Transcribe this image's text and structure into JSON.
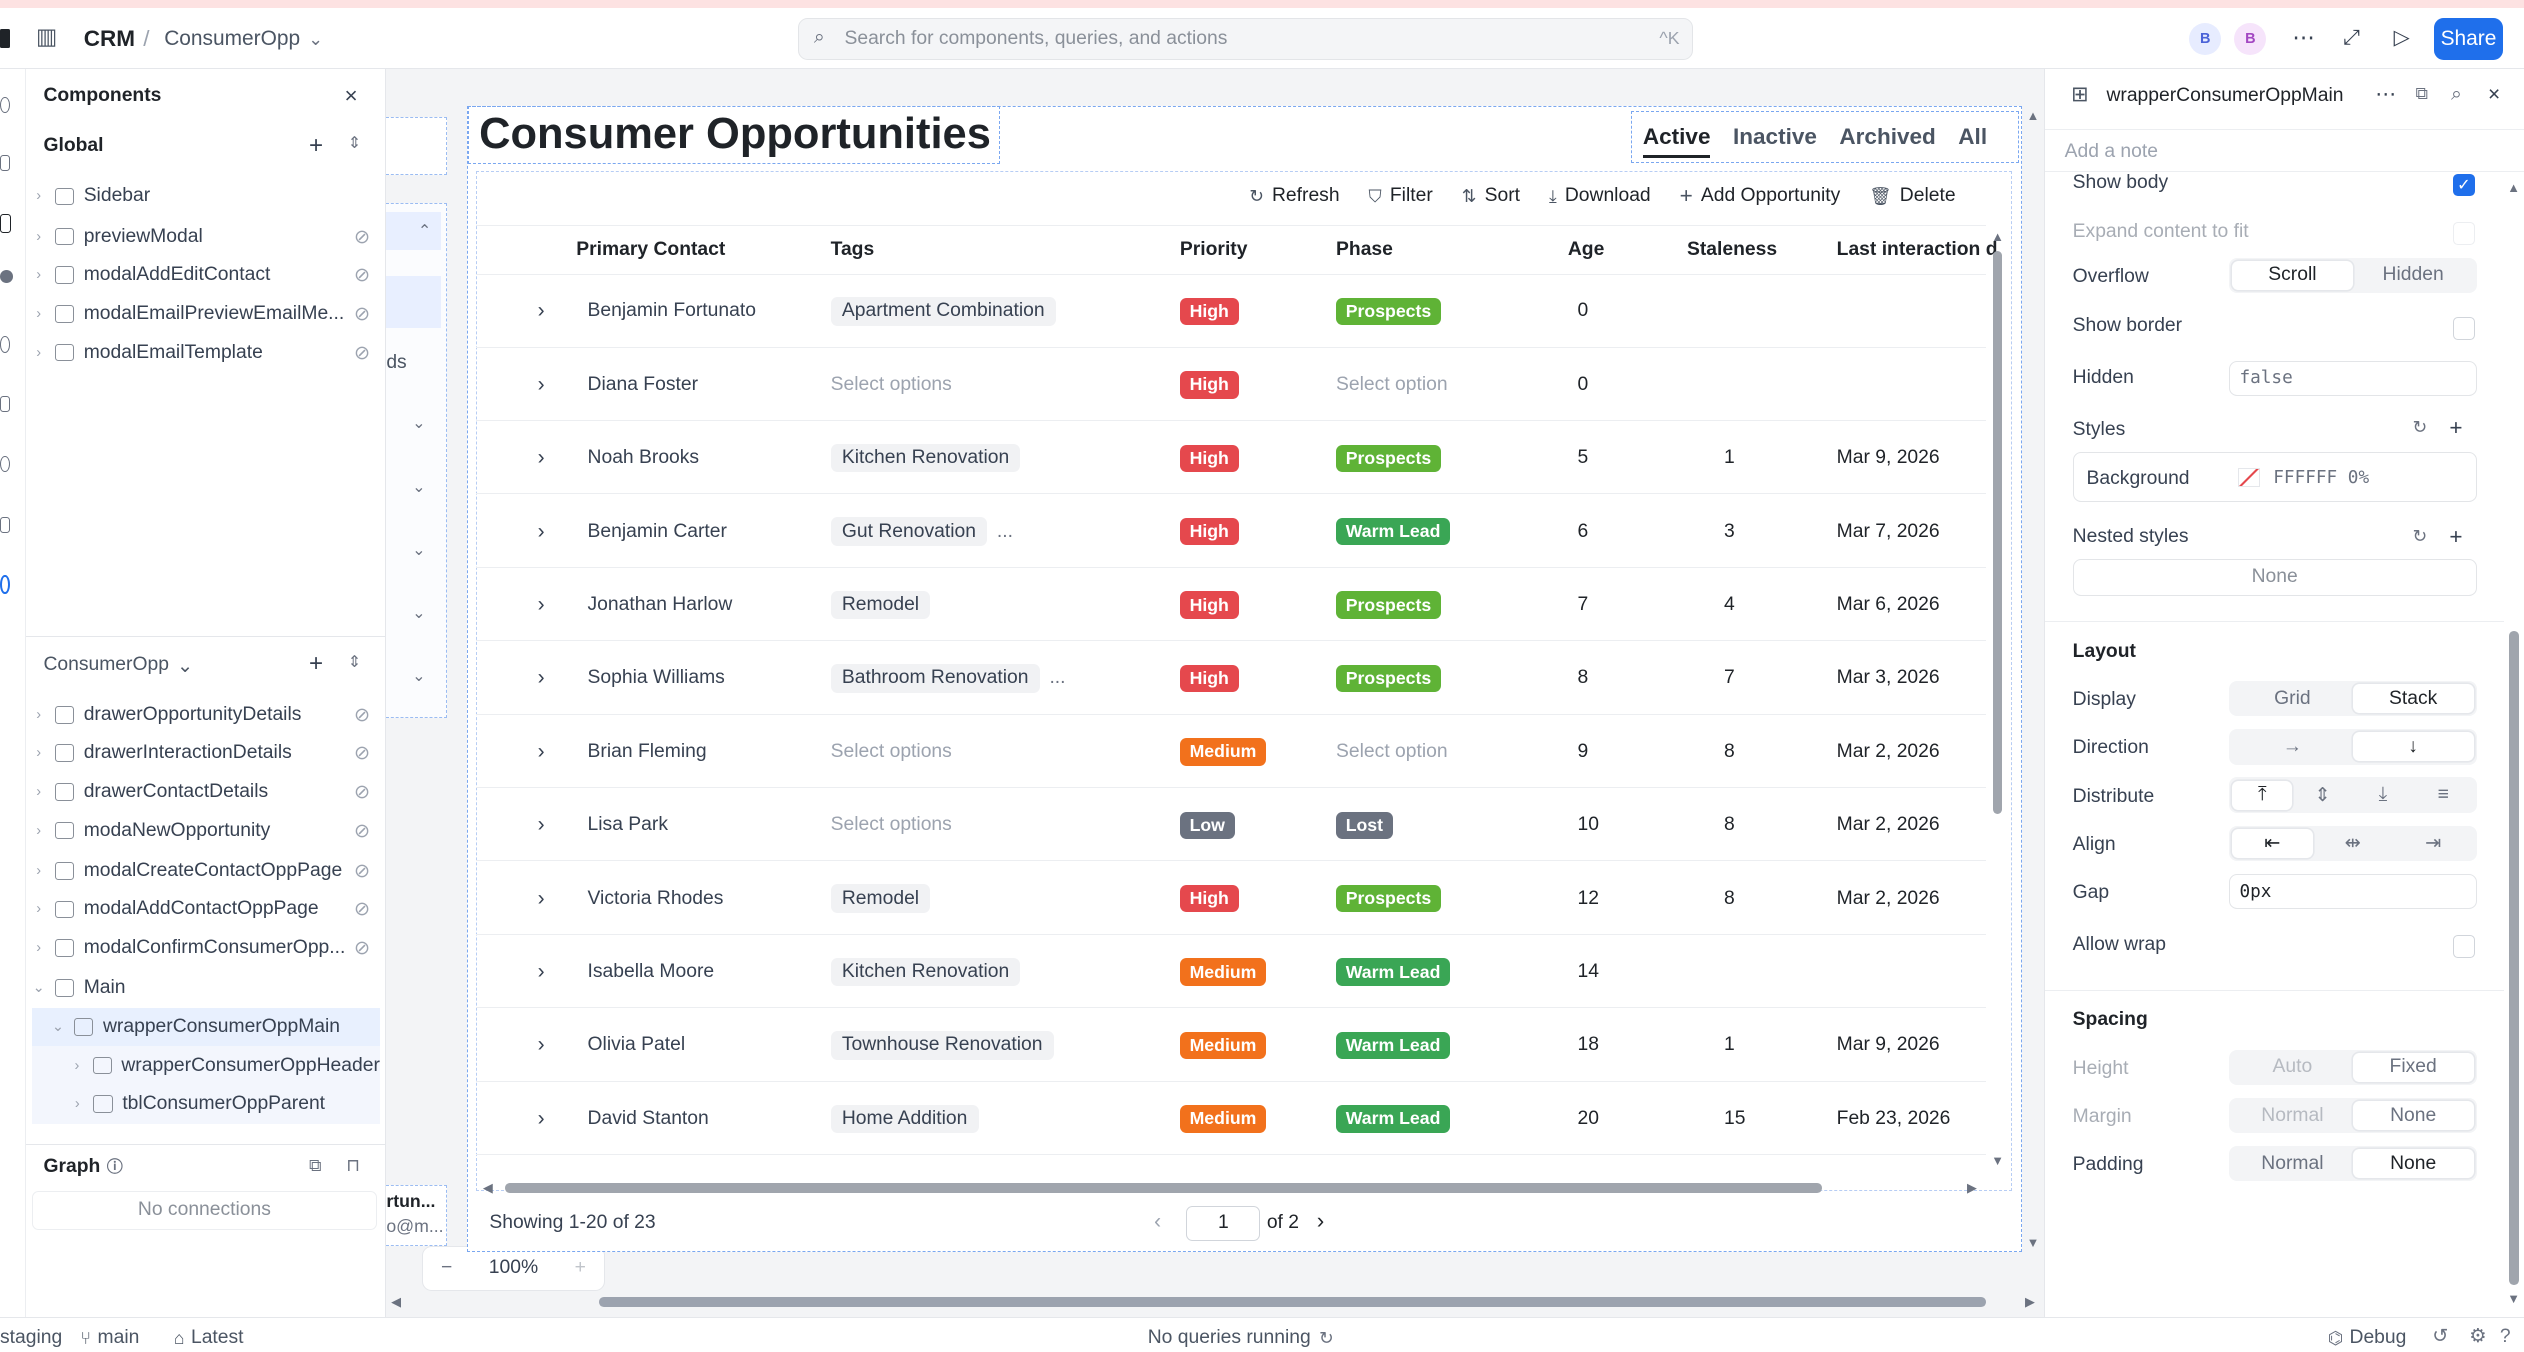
{
  "topbar": {
    "app": "CRM",
    "separator": "/",
    "page": "ConsumerOpp",
    "search_placeholder": "Search for components, queries, and actions",
    "shortcut": "^K",
    "avatar1": "B",
    "avatar2": "B",
    "share": "Share"
  },
  "components": {
    "title": "Components",
    "global_label": "Global",
    "global_items": [
      "Sidebar",
      "previewModal",
      "modalAddEditContact",
      "modalEmailPreviewEmailMe...",
      "modalEmailTemplate"
    ],
    "page_label": "ConsumerOpp",
    "page_items": [
      "drawerOpportunityDetails",
      "drawerInteractionDetails",
      "drawerContactDetails",
      "modaNewOpportunity",
      "modalCreateContactOppPage",
      "modalAddContactOppPage",
      "modalConfirmConsumerOpp..."
    ],
    "main_label": "Main",
    "wrapper": "wrapperConsumerOppMain",
    "child1": "wrapperConsumerOppHeader",
    "child2": "tblConsumerOppParent",
    "graph_label": "Graph",
    "graph_empty": "No connections"
  },
  "canvas": {
    "left_fragment_1": "ds",
    "left_fragment_2": "rtun...",
    "left_fragment_3": "o@m...",
    "zoom": "100%",
    "zoom_minus": "−",
    "zoom_plus": "+"
  },
  "main": {
    "title": "Consumer Opportunities",
    "tabs": [
      "Active",
      "Inactive",
      "Archived",
      "All"
    ],
    "toolbar": [
      "Refresh",
      "Filter",
      "Sort",
      "Download",
      "Add Opportunity",
      "Delete"
    ],
    "columns": [
      "Primary Contact",
      "Tags",
      "Priority",
      "Phase",
      "Age",
      "Staleness",
      "Last interaction d"
    ],
    "rows": [
      {
        "contact": "Benjamin Fortunato",
        "tags": "Apartment Combination",
        "tags_empty": false,
        "tags_more": "",
        "priority": "High",
        "phase": "Prospects",
        "phase_empty": false,
        "age": "0",
        "staleness": "",
        "last": ""
      },
      {
        "contact": "Diana Foster",
        "tags": "Select options",
        "tags_empty": true,
        "tags_more": "",
        "priority": "High",
        "phase": "Select option",
        "phase_empty": true,
        "age": "0",
        "staleness": "",
        "last": ""
      },
      {
        "contact": "Noah Brooks",
        "tags": "Kitchen Renovation",
        "tags_empty": false,
        "tags_more": "",
        "priority": "High",
        "phase": "Prospects",
        "phase_empty": false,
        "age": "5",
        "staleness": "1",
        "last": "Mar 9, 2026"
      },
      {
        "contact": "Benjamin Carter",
        "tags": "Gut Renovation",
        "tags_empty": false,
        "tags_more": "...",
        "priority": "High",
        "phase": "Warm Lead",
        "phase_empty": false,
        "age": "6",
        "staleness": "3",
        "last": "Mar 7, 2026"
      },
      {
        "contact": "Jonathan Harlow",
        "tags": "Remodel",
        "tags_empty": false,
        "tags_more": "",
        "priority": "High",
        "phase": "Prospects",
        "phase_empty": false,
        "age": "7",
        "staleness": "4",
        "last": "Mar 6, 2026"
      },
      {
        "contact": "Sophia Williams",
        "tags": "Bathroom Renovation",
        "tags_empty": false,
        "tags_more": "...",
        "priority": "High",
        "phase": "Prospects",
        "phase_empty": false,
        "age": "8",
        "staleness": "7",
        "last": "Mar 3, 2026"
      },
      {
        "contact": "Brian Fleming",
        "tags": "Select options",
        "tags_empty": true,
        "tags_more": "",
        "priority": "Medium",
        "phase": "Select option",
        "phase_empty": true,
        "age": "9",
        "staleness": "8",
        "last": "Mar 2, 2026"
      },
      {
        "contact": "Lisa Park",
        "tags": "Select options",
        "tags_empty": true,
        "tags_more": "",
        "priority": "Low",
        "phase": "Lost",
        "phase_empty": false,
        "age": "10",
        "staleness": "8",
        "last": "Mar 2, 2026"
      },
      {
        "contact": "Victoria Rhodes",
        "tags": "Remodel",
        "tags_empty": false,
        "tags_more": "",
        "priority": "High",
        "phase": "Prospects",
        "phase_empty": false,
        "age": "12",
        "staleness": "8",
        "last": "Mar 2, 2026"
      },
      {
        "contact": "Isabella Moore",
        "tags": "Kitchen Renovation",
        "tags_empty": false,
        "tags_more": "",
        "priority": "Medium",
        "phase": "Warm Lead",
        "phase_empty": false,
        "age": "14",
        "staleness": "",
        "last": ""
      },
      {
        "contact": "Olivia Patel",
        "tags": "Townhouse Renovation",
        "tags_empty": false,
        "tags_more": "",
        "priority": "Medium",
        "phase": "Warm Lead",
        "phase_empty": false,
        "age": "18",
        "staleness": "1",
        "last": "Mar 9, 2026"
      },
      {
        "contact": "David Stanton",
        "tags": "Home Addition",
        "tags_empty": false,
        "tags_more": "",
        "priority": "Medium",
        "phase": "Warm Lead",
        "phase_empty": false,
        "age": "20",
        "staleness": "15",
        "last": "Feb 23, 2026"
      }
    ],
    "showing": "Showing 1-20 of 23",
    "page_value": "1",
    "page_of": "of 2"
  },
  "colors": {
    "High": "#e5484d",
    "Medium": "#f2711c",
    "Low": "#6b7280",
    "Prospects": "#5fb336",
    "Warm Lead": "#3aa655",
    "Lost": "#6b7280",
    "accent": "#1f6feb"
  },
  "inspector": {
    "name": "wrapperConsumerOppMain",
    "note_placeholder": "Add a note",
    "show_body": "Show body",
    "expand": "Expand content to fit",
    "overflow": "Overflow",
    "overflow_opts": [
      "Scroll",
      "Hidden"
    ],
    "show_border": "Show border",
    "hidden": "Hidden",
    "hidden_value": "false",
    "styles": "Styles",
    "background": "Background",
    "background_value": "FFFFFF 0%",
    "nested_styles": "Nested styles",
    "nested_value": "None",
    "layout": "Layout",
    "display": "Display",
    "display_opts": [
      "Grid",
      "Stack"
    ],
    "direction": "Direction",
    "distribute": "Distribute",
    "align": "Align",
    "gap": "Gap",
    "gap_value": "0px",
    "allow_wrap": "Allow wrap",
    "spacing": "Spacing",
    "height": "Height",
    "height_opts": [
      "Auto",
      "Fixed"
    ],
    "margin": "Margin",
    "margin_opts": [
      "Normal",
      "None"
    ],
    "padding": "Padding",
    "padding_opts": [
      "Normal",
      "None"
    ]
  },
  "status": {
    "env": "staging",
    "branch": "main",
    "version": "Latest",
    "queries": "No queries running",
    "debug": "Debug"
  }
}
